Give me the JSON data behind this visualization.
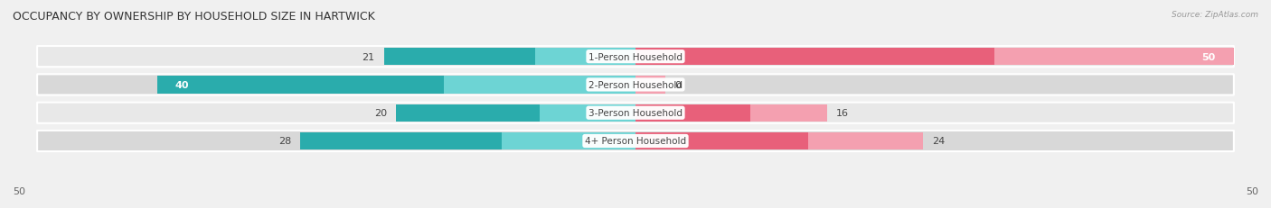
{
  "title": "OCCUPANCY BY OWNERSHIP BY HOUSEHOLD SIZE IN HARTWICK",
  "source": "Source: ZipAtlas.com",
  "categories": [
    "1-Person Household",
    "2-Person Household",
    "3-Person Household",
    "4+ Person Household"
  ],
  "owner_values": [
    21,
    40,
    20,
    28
  ],
  "renter_values": [
    50,
    0,
    16,
    24
  ],
  "max_val": 50,
  "owner_color_dark": "#2AACAC",
  "owner_color_light": "#6DD4D4",
  "renter_color_dark": "#E8607A",
  "renter_color_light": "#F4A0B0",
  "row_colors": [
    "#e8e8e8",
    "#d8d8d8",
    "#e8e8e8",
    "#d8d8d8"
  ],
  "bg_color": "#f0f0f0",
  "axis_label_left": "50",
  "axis_label_right": "50",
  "title_fontsize": 9,
  "label_fontsize": 8,
  "cat_fontsize": 7.5,
  "bar_height": 0.62
}
